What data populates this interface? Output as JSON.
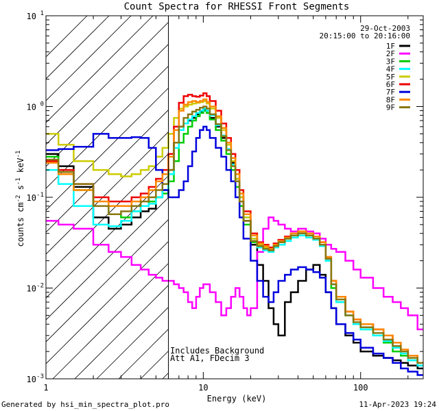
{
  "chart_data": {
    "type": "line",
    "title": "Count Spectra for RHESSI Front Segments",
    "xlabel": "Energy (keV)",
    "ylabel_base": "counts cm",
    "ylabel_exp1": "-2",
    "ylabel_mid1": " s",
    "ylabel_exp2": "-1",
    "ylabel_mid2": " keV",
    "ylabel_exp3": "-1",
    "xscale": "log",
    "yscale": "log",
    "xlim": [
      1,
      250
    ],
    "ylim": [
      0.001,
      10
    ],
    "x_ticks": [
      {
        "value": 1,
        "label": "1"
      },
      {
        "value": 10,
        "label": "10"
      },
      {
        "value": 100,
        "label": "100"
      }
    ],
    "y_ticks": [
      {
        "value": 0.001,
        "base": "10",
        "exp": "-3"
      },
      {
        "value": 0.01,
        "base": "10",
        "exp": "-2"
      },
      {
        "value": 0.1,
        "base": "10",
        "exp": "-1"
      },
      {
        "value": 1,
        "base": "10",
        "exp": "0"
      },
      {
        "value": 10,
        "base": "10",
        "exp": "1"
      }
    ],
    "hatched_region_kev": [
      1,
      6
    ],
    "legend": {
      "date": "29-Oct-2003",
      "time_range": "20:15:00 to 20:16:00",
      "placement": "top-right"
    },
    "annotations": [
      "Includes Background",
      "Att A1, FDecim  3"
    ],
    "series": [
      {
        "name": "1F",
        "color": "#000000",
        "x": [
          1,
          1.2,
          1.5,
          2,
          2.5,
          3,
          3.5,
          4,
          4.5,
          5,
          5.5,
          6,
          6.5,
          7,
          7.5,
          8,
          8.5,
          9,
          9.5,
          10,
          10.5,
          11,
          12,
          13,
          14,
          15,
          16,
          17,
          18,
          20,
          22,
          24,
          26,
          28,
          30,
          33,
          36,
          40,
          45,
          50,
          55,
          60,
          65,
          70,
          80,
          90,
          100,
          120,
          140,
          160,
          180,
          200,
          230
        ],
        "y": [
          0.3,
          0.22,
          0.13,
          0.06,
          0.045,
          0.05,
          0.06,
          0.07,
          0.075,
          0.1,
          0.12,
          0.2,
          0.4,
          0.6,
          0.65,
          0.7,
          0.75,
          0.82,
          0.88,
          0.92,
          0.85,
          0.75,
          0.6,
          0.45,
          0.33,
          0.24,
          0.16,
          0.1,
          0.055,
          0.03,
          0.018,
          0.012,
          0.006,
          0.004,
          0.003,
          0.007,
          0.009,
          0.012,
          0.016,
          0.018,
          0.014,
          0.009,
          0.006,
          0.004,
          0.003,
          0.0025,
          0.002,
          0.0018,
          0.0017,
          0.0016,
          0.0015,
          0.0014,
          0.0013
        ]
      },
      {
        "name": "2F",
        "color": "#ff00ff",
        "x": [
          1,
          1.2,
          1.5,
          2,
          2.5,
          3,
          3.5,
          4,
          4.5,
          5,
          5.5,
          6,
          6.5,
          7,
          7.5,
          8,
          8.5,
          9,
          9.5,
          10,
          11,
          12,
          13,
          14,
          15,
          16,
          17,
          18,
          19,
          20,
          22,
          24,
          26,
          28,
          30,
          33,
          36,
          40,
          45,
          50,
          55,
          60,
          65,
          70,
          80,
          90,
          100,
          120,
          140,
          160,
          180,
          200,
          230
        ],
        "y": [
          0.055,
          0.05,
          0.045,
          0.03,
          0.025,
          0.022,
          0.018,
          0.016,
          0.014,
          0.013,
          0.012,
          0.012,
          0.011,
          0.01,
          0.009,
          0.007,
          0.006,
          0.008,
          0.01,
          0.011,
          0.009,
          0.007,
          0.005,
          0.006,
          0.008,
          0.01,
          0.008,
          0.006,
          0.005,
          0.006,
          0.025,
          0.045,
          0.06,
          0.055,
          0.05,
          0.045,
          0.042,
          0.045,
          0.042,
          0.04,
          0.035,
          0.03,
          0.027,
          0.025,
          0.02,
          0.016,
          0.013,
          0.01,
          0.008,
          0.007,
          0.006,
          0.005,
          0.0035
        ]
      },
      {
        "name": "3F",
        "color": "#00cc00",
        "x": [
          1,
          1.2,
          1.5,
          2,
          2.5,
          3,
          3.5,
          4,
          4.5,
          5,
          5.5,
          6,
          6.5,
          7,
          7.5,
          8,
          8.5,
          9,
          9.5,
          10,
          10.5,
          11,
          12,
          13,
          14,
          15,
          16,
          17,
          18,
          20,
          22,
          24,
          26,
          28,
          30,
          33,
          36,
          40,
          45,
          50,
          55,
          60,
          65,
          70,
          80,
          90,
          100,
          120,
          140,
          160,
          180,
          200,
          230
        ],
        "y": [
          0.28,
          0.2,
          0.12,
          0.08,
          0.065,
          0.06,
          0.07,
          0.08,
          0.09,
          0.1,
          0.11,
          0.15,
          0.25,
          0.4,
          0.5,
          0.6,
          0.7,
          0.78,
          0.85,
          0.9,
          0.85,
          0.72,
          0.55,
          0.42,
          0.3,
          0.2,
          0.13,
          0.08,
          0.05,
          0.032,
          0.03,
          0.028,
          0.026,
          0.03,
          0.032,
          0.035,
          0.038,
          0.04,
          0.038,
          0.035,
          0.03,
          0.02,
          0.01,
          0.007,
          0.005,
          0.004,
          0.0035,
          0.003,
          0.0025,
          0.002,
          0.0018,
          0.0016,
          0.0014
        ]
      },
      {
        "name": "4F",
        "color": "#00ffff",
        "x": [
          1,
          1.2,
          1.5,
          2,
          2.5,
          3,
          3.5,
          4,
          4.5,
          5,
          5.5,
          6,
          6.5,
          7,
          7.5,
          8,
          8.5,
          9,
          9.5,
          10,
          10.5,
          11,
          12,
          13,
          14,
          15,
          16,
          17,
          18,
          20,
          22,
          24,
          26,
          28,
          30,
          33,
          36,
          40,
          45,
          50,
          55,
          60,
          65,
          70,
          80,
          90,
          100,
          120,
          140,
          160,
          180,
          200,
          230
        ],
        "y": [
          0.2,
          0.14,
          0.08,
          0.05,
          0.048,
          0.055,
          0.07,
          0.08,
          0.085,
          0.1,
          0.12,
          0.18,
          0.35,
          0.55,
          0.65,
          0.72,
          0.78,
          0.85,
          0.9,
          0.95,
          0.9,
          0.8,
          0.62,
          0.48,
          0.34,
          0.23,
          0.15,
          0.1,
          0.06,
          0.035,
          0.028,
          0.026,
          0.025,
          0.028,
          0.03,
          0.033,
          0.036,
          0.038,
          0.036,
          0.034,
          0.029,
          0.02,
          0.011,
          0.007,
          0.005,
          0.004,
          0.0035,
          0.003,
          0.0026,
          0.0022,
          0.0019,
          0.0016,
          0.0014
        ]
      },
      {
        "name": "5F",
        "color": "#cccc00",
        "x": [
          1,
          1.2,
          1.5,
          2,
          2.5,
          3,
          3.5,
          4,
          4.5,
          5,
          5.5,
          6,
          6.5,
          7,
          7.5,
          8,
          8.5,
          9,
          9.5,
          10,
          10.5,
          11,
          12,
          13,
          14,
          15,
          16,
          17,
          18,
          20,
          22,
          24,
          26,
          28,
          30,
          33,
          36,
          40,
          45,
          50,
          55,
          60,
          65,
          70,
          80,
          90,
          100,
          120,
          140,
          160,
          180,
          200,
          230
        ],
        "y": [
          0.5,
          0.38,
          0.25,
          0.2,
          0.18,
          0.17,
          0.18,
          0.2,
          0.22,
          0.28,
          0.35,
          0.5,
          0.75,
          0.95,
          1.0,
          1.05,
          1.08,
          1.1,
          1.12,
          1.15,
          1.08,
          0.95,
          0.75,
          0.55,
          0.38,
          0.25,
          0.16,
          0.1,
          0.06,
          0.035,
          0.03,
          0.028,
          0.027,
          0.03,
          0.033,
          0.036,
          0.04,
          0.042,
          0.04,
          0.037,
          0.032,
          0.022,
          0.012,
          0.008,
          0.0055,
          0.0045,
          0.004,
          0.0035,
          0.003,
          0.0025,
          0.0021,
          0.0018,
          0.0015
        ]
      },
      {
        "name": "6F",
        "color": "#ee0000",
        "x": [
          1,
          1.2,
          1.5,
          2,
          2.5,
          3,
          3.5,
          4,
          4.5,
          5,
          5.5,
          6,
          6.5,
          7,
          7.5,
          8,
          8.5,
          9,
          9.5,
          10,
          10.5,
          11,
          12,
          13,
          14,
          15,
          16,
          17,
          18,
          20,
          22,
          24,
          26,
          28,
          30,
          33,
          36,
          40,
          45,
          50,
          55,
          60,
          65,
          70,
          80,
          90,
          100,
          120,
          140,
          160,
          180,
          200,
          230
        ],
        "y": [
          0.25,
          0.2,
          0.14,
          0.1,
          0.09,
          0.09,
          0.1,
          0.11,
          0.13,
          0.16,
          0.2,
          0.3,
          0.6,
          1.1,
          1.3,
          1.35,
          1.3,
          1.28,
          1.32,
          1.4,
          1.3,
          1.15,
          0.9,
          0.65,
          0.45,
          0.3,
          0.2,
          0.12,
          0.07,
          0.04,
          0.032,
          0.03,
          0.028,
          0.031,
          0.034,
          0.037,
          0.04,
          0.042,
          0.04,
          0.037,
          0.032,
          0.022,
          0.012,
          0.008,
          0.0055,
          0.0045,
          0.004,
          0.0035,
          0.003,
          0.0025,
          0.0021,
          0.0018,
          0.0015
        ]
      },
      {
        "name": "7F",
        "color": "#0000dd",
        "x": [
          1,
          1.2,
          1.5,
          2,
          2.5,
          3,
          3.5,
          4,
          4.5,
          5,
          5.5,
          6,
          6.5,
          7,
          7.5,
          8,
          8.5,
          9,
          9.5,
          10,
          10.5,
          11,
          12,
          13,
          14,
          15,
          16,
          17,
          18,
          20,
          22,
          24,
          26,
          28,
          30,
          33,
          36,
          40,
          45,
          50,
          55,
          60,
          65,
          70,
          80,
          90,
          100,
          120,
          140,
          160,
          180,
          200,
          230
        ],
        "y": [
          0.33,
          0.34,
          0.36,
          0.5,
          0.45,
          0.45,
          0.46,
          0.45,
          0.35,
          0.2,
          0.12,
          0.1,
          0.1,
          0.12,
          0.15,
          0.22,
          0.32,
          0.45,
          0.55,
          0.6,
          0.55,
          0.45,
          0.35,
          0.28,
          0.2,
          0.15,
          0.1,
          0.06,
          0.035,
          0.02,
          0.012,
          0.008,
          0.007,
          0.009,
          0.012,
          0.014,
          0.016,
          0.017,
          0.016,
          0.015,
          0.013,
          0.009,
          0.006,
          0.004,
          0.0032,
          0.0027,
          0.0022,
          0.0019,
          0.0017,
          0.0015,
          0.0013,
          0.0012,
          0.0011
        ]
      },
      {
        "name": "8F",
        "color": "#ff8800",
        "x": [
          1,
          1.2,
          1.5,
          2,
          2.5,
          3,
          3.5,
          4,
          4.5,
          5,
          5.5,
          6,
          6.5,
          7,
          7.5,
          8,
          8.5,
          9,
          9.5,
          10,
          10.5,
          11,
          12,
          13,
          14,
          15,
          16,
          17,
          18,
          20,
          22,
          24,
          26,
          28,
          30,
          33,
          36,
          40,
          45,
          50,
          55,
          60,
          65,
          70,
          80,
          90,
          100,
          120,
          140,
          160,
          180,
          200,
          230
        ],
        "y": [
          0.24,
          0.18,
          0.12,
          0.09,
          0.08,
          0.08,
          0.09,
          0.1,
          0.12,
          0.15,
          0.18,
          0.28,
          0.55,
          0.9,
          1.05,
          1.12,
          1.15,
          1.12,
          1.15,
          1.2,
          1.12,
          1.0,
          0.78,
          0.58,
          0.4,
          0.27,
          0.18,
          0.11,
          0.065,
          0.038,
          0.031,
          0.029,
          0.027,
          0.03,
          0.033,
          0.036,
          0.04,
          0.042,
          0.04,
          0.037,
          0.032,
          0.022,
          0.012,
          0.008,
          0.0055,
          0.0045,
          0.004,
          0.0035,
          0.003,
          0.0025,
          0.0021,
          0.0018,
          0.0015
        ]
      },
      {
        "name": "9F",
        "color": "#887711",
        "x": [
          1,
          1.2,
          1.5,
          2,
          2.5,
          3,
          3.5,
          4,
          4.5,
          5,
          5.5,
          6,
          6.5,
          7,
          7.5,
          8,
          8.5,
          9,
          9.5,
          10,
          10.5,
          11,
          12,
          13,
          14,
          15,
          16,
          17,
          18,
          20,
          22,
          24,
          26,
          28,
          30,
          33,
          36,
          40,
          45,
          50,
          55,
          60,
          65,
          70,
          80,
          90,
          100,
          120,
          140,
          160,
          180,
          200,
          230
        ],
        "y": [
          0.26,
          0.19,
          0.14,
          0.08,
          0.065,
          0.07,
          0.08,
          0.09,
          0.1,
          0.12,
          0.14,
          0.2,
          0.4,
          0.6,
          0.75,
          0.82,
          0.88,
          0.92,
          0.97,
          1.0,
          0.95,
          0.82,
          0.64,
          0.47,
          0.33,
          0.22,
          0.15,
          0.09,
          0.055,
          0.033,
          0.029,
          0.027,
          0.026,
          0.029,
          0.032,
          0.035,
          0.038,
          0.04,
          0.038,
          0.035,
          0.03,
          0.021,
          0.011,
          0.0075,
          0.005,
          0.0042,
          0.0037,
          0.0032,
          0.0027,
          0.0023,
          0.002,
          0.0017,
          0.0015
        ]
      }
    ]
  },
  "footer": {
    "generated_by": "Generated by hsi_min_spectra_plot.pro",
    "timestamp": "11-Apr-2023 19:24"
  }
}
